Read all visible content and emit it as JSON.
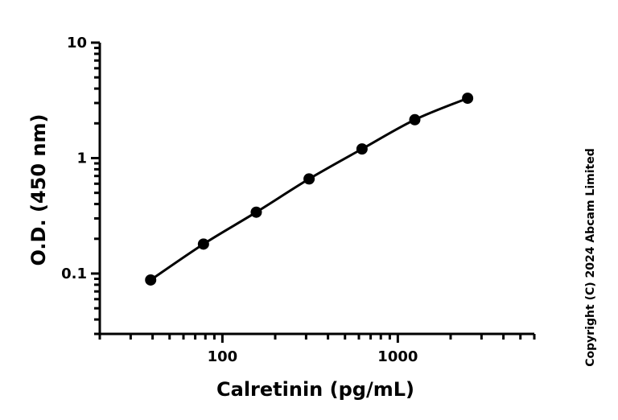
{
  "chart_data": {
    "type": "scatter",
    "xlabel": "Calretinin (pg/mL)",
    "ylabel": "O.D. (450 nm)",
    "x_scale": "log",
    "y_scale": "log",
    "xlim": [
      20,
      6000
    ],
    "ylim": [
      0.03,
      10
    ],
    "x_tick_labels": [
      {
        "value": 100,
        "label": "100"
      },
      {
        "value": 1000,
        "label": "1000"
      }
    ],
    "y_tick_labels": [
      {
        "value": 0.1,
        "label": "0.1"
      },
      {
        "value": 1,
        "label": "1"
      },
      {
        "value": 10,
        "label": "10"
      }
    ],
    "series": [
      {
        "x": [
          39,
          78,
          156,
          312,
          625,
          1250,
          2500
        ],
        "y": [
          0.088,
          0.18,
          0.34,
          0.66,
          1.2,
          2.15,
          3.3
        ],
        "fit_curve": true,
        "color": "#000000"
      }
    ],
    "grid": false,
    "legend": "none"
  },
  "copyright": "Copyright (C) 2024 Abcam Limited"
}
